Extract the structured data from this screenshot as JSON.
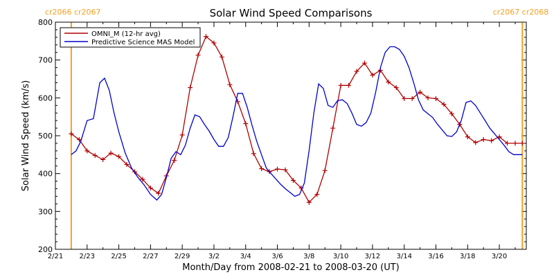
{
  "chart_data": {
    "type": "line",
    "title": "Solar Wind Speed Comparisons",
    "xlabel": "Month/Day from 2008-02-21 to 2008-03-20 (UT)",
    "ylabel": "Solar Wind Speed (km/s)",
    "xlim": [
      -1.0,
      28.7
    ],
    "ylim": [
      200,
      800
    ],
    "x_ticks": [
      {
        "x": -1,
        "label": "2/21"
      },
      {
        "x": 1,
        "label": "2/23"
      },
      {
        "x": 3,
        "label": "2/25"
      },
      {
        "x": 5,
        "label": "2/27"
      },
      {
        "x": 7,
        "label": "2/29"
      },
      {
        "x": 9,
        "label": "3/2"
      },
      {
        "x": 11,
        "label": "3/4"
      },
      {
        "x": 13,
        "label": "3/6"
      },
      {
        "x": 15,
        "label": "3/8"
      },
      {
        "x": 17,
        "label": "3/10"
      },
      {
        "x": 19,
        "label": "3/12"
      },
      {
        "x": 21,
        "label": "3/14"
      },
      {
        "x": 23,
        "label": "3/16"
      },
      {
        "x": 25,
        "label": "3/18"
      },
      {
        "x": 27,
        "label": "3/20"
      }
    ],
    "y_ticks": [
      200,
      300,
      400,
      500,
      600,
      700,
      800
    ],
    "carrington_markers": [
      {
        "x": 0.0,
        "label": "cr2066 cr2067",
        "label_anchor": "start"
      },
      {
        "x": 28.45,
        "label": "cr2067 cr2068",
        "label_anchor": "end"
      }
    ],
    "legend_position": "top-left",
    "series": [
      {
        "name": "OMNI_M (12-hr avg)",
        "color": "#b00000",
        "marker": "plus",
        "x": [
          0.0,
          0.5,
          1.0,
          1.5,
          2.0,
          2.5,
          3.0,
          3.5,
          4.0,
          4.5,
          5.0,
          5.5,
          6.0,
          6.5,
          7.0,
          7.5,
          8.0,
          8.5,
          9.0,
          9.5,
          10.0,
          10.5,
          11.0,
          11.5,
          12.0,
          12.5,
          13.0,
          13.5,
          14.0,
          14.5,
          15.0,
          15.5,
          16.0,
          16.5,
          17.0,
          17.5,
          18.0,
          18.5,
          19.0,
          19.5,
          20.0,
          20.5,
          21.0,
          21.5,
          22.0,
          22.5,
          23.0,
          23.5,
          24.0,
          24.5,
          25.0,
          25.5,
          26.0,
          26.5,
          27.0,
          27.5,
          28.0,
          28.45
        ],
        "values": [
          505,
          490,
          460,
          448,
          437,
          454,
          445,
          424,
          405,
          385,
          362,
          348,
          394,
          435,
          502,
          627,
          713,
          762,
          745,
          708,
          635,
          590,
          532,
          453,
          413,
          405,
          412,
          410,
          382,
          362,
          324,
          345,
          408,
          520,
          633,
          633,
          670,
          692,
          660,
          673,
          642,
          627,
          598,
          598,
          615,
          600,
          598,
          583,
          558,
          530,
          497,
          482,
          490,
          487,
          497,
          480,
          480,
          480
        ]
      },
      {
        "name": "Predictive Science MAS Model",
        "color": "#0000cc",
        "marker": "none",
        "x": [
          0.0,
          0.3,
          0.6,
          1.0,
          1.4,
          1.8,
          2.1,
          2.4,
          2.7,
          3.0,
          3.4,
          3.8,
          4.2,
          4.6,
          5.0,
          5.4,
          5.7,
          6.0,
          6.3,
          6.6,
          6.9,
          7.2,
          7.5,
          7.8,
          8.1,
          8.4,
          8.7,
          9.0,
          9.3,
          9.6,
          9.9,
          10.2,
          10.5,
          10.8,
          11.1,
          11.4,
          11.7,
          12.0,
          12.3,
          12.6,
          12.9,
          13.2,
          13.5,
          13.8,
          14.1,
          14.4,
          14.7,
          15.0,
          15.3,
          15.6,
          15.9,
          16.2,
          16.5,
          16.8,
          17.1,
          17.4,
          17.7,
          18.0,
          18.3,
          18.6,
          18.9,
          19.2,
          19.5,
          19.8,
          20.1,
          20.4,
          20.7,
          21.0,
          21.3,
          21.6,
          21.9,
          22.2,
          22.5,
          22.8,
          23.1,
          23.4,
          23.7,
          24.0,
          24.3,
          24.6,
          24.9,
          25.2,
          25.5,
          25.8,
          26.1,
          26.4,
          26.7,
          27.0,
          27.3,
          27.6,
          27.9,
          28.2,
          28.45
        ],
        "values": [
          450,
          460,
          485,
          540,
          545,
          640,
          652,
          620,
          560,
          510,
          455,
          415,
          390,
          370,
          345,
          330,
          345,
          390,
          440,
          458,
          450,
          475,
          520,
          555,
          550,
          530,
          512,
          490,
          472,
          472,
          495,
          550,
          612,
          612,
          575,
          528,
          485,
          450,
          415,
          400,
          386,
          372,
          360,
          350,
          340,
          345,
          375,
          460,
          560,
          637,
          625,
          580,
          575,
          593,
          595,
          585,
          560,
          530,
          525,
          535,
          560,
          615,
          680,
          720,
          735,
          735,
          728,
          710,
          680,
          640,
          595,
          568,
          558,
          548,
          530,
          515,
          500,
          498,
          510,
          540,
          588,
          592,
          580,
          560,
          540,
          520,
          505,
          490,
          475,
          458,
          450,
          450,
          450
        ]
      }
    ]
  }
}
